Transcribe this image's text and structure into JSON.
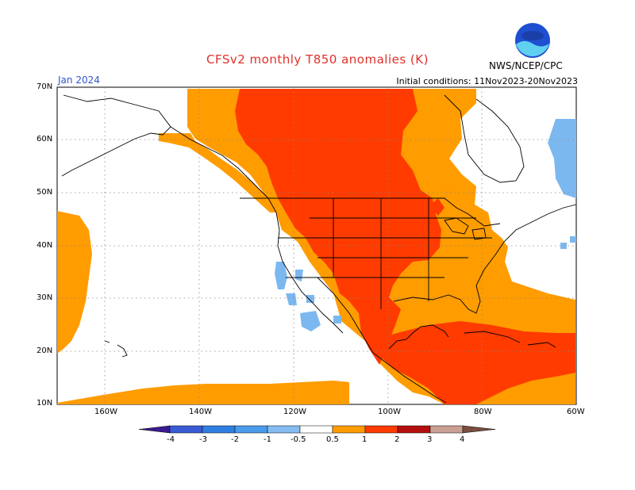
{
  "title": "CFSv2 monthly T850 anomalies (K)",
  "month_label": "Jan 2024",
  "initial_conditions": "Initial conditions: 11Nov2023-20Nov2023",
  "agency": "NWS/NCEP/CPC",
  "logo_text": "NOAA",
  "map": {
    "lat_labels": [
      "70N",
      "60N",
      "50N",
      "40N",
      "30N",
      "20N",
      "10N"
    ],
    "lon_labels": [
      "160W",
      "140W",
      "120W",
      "100W",
      "80W",
      "60W"
    ],
    "grid": "dotted"
  },
  "colorbar": {
    "labels": [
      "-4",
      "-3",
      "-2",
      "-1",
      "-0.5",
      "0.5",
      "1",
      "2",
      "3",
      "4"
    ],
    "colors": [
      "#3a1b8f",
      "#3a5bd6",
      "#2f7fe0",
      "#4a9bea",
      "#85bdf2",
      "#ffffff",
      "#ff9c00",
      "#ff3b00",
      "#b30f0f",
      "#c9a093",
      "#7a4f40"
    ]
  },
  "colors": {
    "orange": "#ff9c00",
    "red": "#ff3b00",
    "blue": "#7cb8f0",
    "title_red": "#e0302a",
    "month_blue": "#3355cc"
  }
}
